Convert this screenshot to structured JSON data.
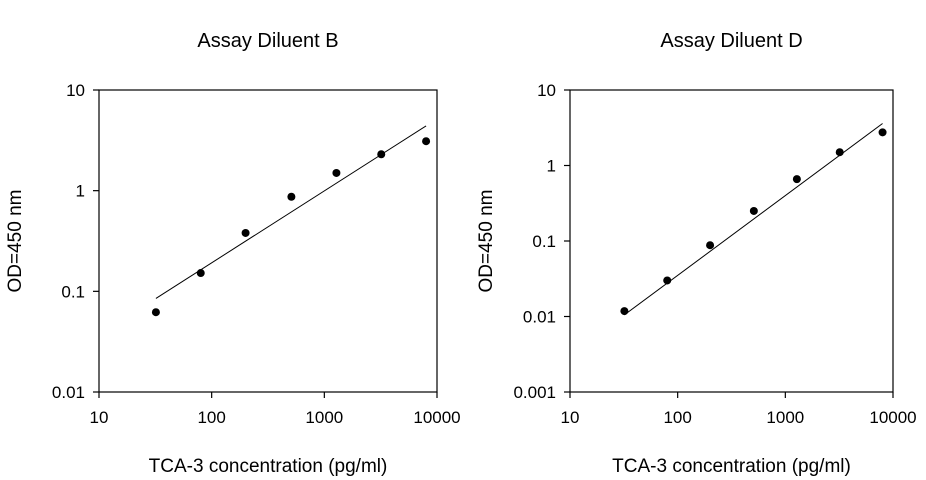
{
  "chart_data": [
    {
      "type": "scatter",
      "title": "Assay Diluent B",
      "xlabel": "TCA-3 concentration (pg/ml)",
      "ylabel": "OD=450 nm",
      "x_scale": "log",
      "y_scale": "log",
      "xlim": [
        10,
        10000
      ],
      "ylim": [
        0.01,
        10
      ],
      "x_ticks": [
        10,
        100,
        1000,
        10000
      ],
      "x_tick_labels": [
        "10",
        "100",
        "1000",
        "10000"
      ],
      "y_ticks": [
        0.01,
        0.1,
        1,
        10
      ],
      "y_tick_labels": [
        "0.01",
        "0.1",
        "1",
        "10"
      ],
      "grid": false,
      "legend": "none",
      "marker_color": "#000000",
      "line_color": "#000000",
      "series": [
        {
          "x": [
            32,
            80,
            200,
            510,
            1280,
            3200,
            8000
          ],
          "y": [
            0.062,
            0.152,
            0.38,
            0.87,
            1.5,
            2.3,
            3.1
          ]
        }
      ],
      "trendline": {
        "x": [
          32,
          8000
        ],
        "y": [
          0.085,
          4.4
        ]
      }
    },
    {
      "type": "scatter",
      "title": "Assay Diluent D",
      "xlabel": "TCA-3 concentration (pg/ml)",
      "ylabel": "OD=450 nm",
      "x_scale": "log",
      "y_scale": "log",
      "xlim": [
        10,
        10000
      ],
      "ylim": [
        0.001,
        10
      ],
      "x_ticks": [
        10,
        100,
        1000,
        10000
      ],
      "x_tick_labels": [
        "10",
        "100",
        "1000",
        "10000"
      ],
      "y_ticks": [
        0.001,
        0.01,
        0.1,
        1,
        10
      ],
      "y_tick_labels": [
        "0.001",
        "0.01",
        "0.1",
        "1",
        "10"
      ],
      "grid": false,
      "legend": "none",
      "marker_color": "#000000",
      "line_color": "#000000",
      "series": [
        {
          "x": [
            32,
            80,
            200,
            510,
            1280,
            3200,
            8000
          ],
          "y": [
            0.0118,
            0.03,
            0.088,
            0.25,
            0.66,
            1.5,
            2.75
          ]
        }
      ],
      "trendline": {
        "x": [
          32,
          8000
        ],
        "y": [
          0.0105,
          3.6
        ]
      }
    }
  ]
}
